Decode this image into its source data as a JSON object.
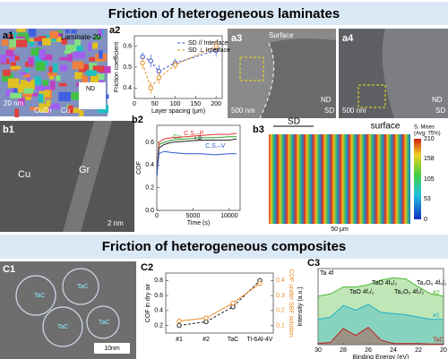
{
  "banners": [
    "Friction of heterogeneous laminates",
    "Friction of heterogeneous composites"
  ],
  "images": {
    "a1": {
      "label": "a1",
      "texts": [
        "Laminate-20",
        "ND",
        "CuZn",
        "Cu",
        "20 nm"
      ]
    },
    "a3": {
      "label": "a3",
      "texts": [
        "Surface",
        "500 nm",
        "ND",
        "SD"
      ]
    },
    "a4": {
      "label": "a4",
      "texts": [
        "500 nm",
        "ND",
        "SD"
      ]
    },
    "b1": {
      "label": "b1",
      "texts": [
        "Cu",
        "Gr",
        "2 nm"
      ]
    },
    "b3": {
      "label": "b3",
      "texts": [
        "SD",
        "surface",
        "50 μm"
      ],
      "legend_title": "S, Mises",
      "legend_subtitle": "(Avg: 75%)",
      "legend_ticks": [
        210,
        158,
        105,
        53,
        0
      ]
    },
    "c1": {
      "label": "C1",
      "texts": [
        "TaC",
        "TaC",
        "TaC",
        "TaC",
        "10nm"
      ]
    }
  },
  "chart_data": [
    {
      "label": "a2",
      "type": "line",
      "xlabel": "Layer spacing (μm)",
      "ylabel": "Friction coefficient",
      "x": [
        20,
        40,
        60,
        100,
        200
      ],
      "xlim": [
        0,
        215
      ],
      "xticks": [
        0,
        50,
        100,
        150,
        200
      ],
      "ylim": [
        0.35,
        0.65
      ],
      "yticks": [
        0.4,
        0.5,
        0.6
      ],
      "markers": true,
      "dashed": true,
      "legend": "upper right",
      "series": [
        {
          "name": "SD // Interface",
          "color": "#3a55c8",
          "values": [
            0.55,
            0.53,
            0.48,
            0.52,
            0.58
          ],
          "errors": [
            0.02,
            0.03,
            0.03,
            0.02,
            0.03
          ]
        },
        {
          "name": "SD ⊥ Interface",
          "color": "#e0902a",
          "values": [
            0.52,
            0.4,
            0.45,
            0.51,
            0.6
          ],
          "errors": [
            0.03,
            0.03,
            0.03,
            0.02,
            0.03
          ]
        }
      ]
    },
    {
      "label": "b2",
      "type": "line",
      "xlabel": "Time (s)",
      "ylabel": "COF",
      "x": [
        0,
        300,
        1000,
        2000,
        4000,
        6000,
        8000,
        10000,
        11000
      ],
      "xlim": [
        0,
        11500
      ],
      "xticks": [
        0,
        5000,
        10000
      ],
      "ylim": [
        0,
        0.75
      ],
      "yticks": [
        {
          "value": 0,
          "label": "0.0"
        },
        0.2,
        0.4,
        0.6
      ],
      "series_labels": true,
      "series": [
        {
          "name": "Cu",
          "color": "#2aa02a",
          "values": [
            0.3,
            0.58,
            0.6,
            0.62,
            0.63,
            0.64,
            0.64,
            0.65,
            0.65
          ]
        },
        {
          "name": "C.S.–P",
          "color": "#e03030",
          "values": [
            0.3,
            0.6,
            0.63,
            0.64,
            0.65,
            0.66,
            0.67,
            0.67,
            0.68
          ]
        },
        {
          "name": "I.P.",
          "color": "#222222",
          "values": [
            0.3,
            0.55,
            0.58,
            0.6,
            0.61,
            0.62,
            0.62,
            0.62,
            0.63
          ]
        },
        {
          "name": "C.S.–V",
          "color": "#2a5ad0",
          "values": [
            0.3,
            0.5,
            0.52,
            0.51,
            0.5,
            0.5,
            0.49,
            0.5,
            0.5
          ]
        }
      ]
    },
    {
      "label": "C2",
      "type": "line",
      "categories": [
        "#1",
        "#2",
        "TaC",
        "Ti-6Al-4V"
      ],
      "ylabel": "COF in dry air",
      "y2label": "COF under SBF solution",
      "ylim": [
        0.1,
        0.9
      ],
      "yticks": [
        0.2,
        0.4,
        0.6,
        0.8
      ],
      "y2lim": [
        0.05,
        0.45
      ],
      "y2ticks": [
        0.1,
        0.2,
        0.3,
        0.4
      ],
      "markers": true,
      "series": [
        {
          "name": "COF in dry air",
          "color": "#222222",
          "values": [
            0.2,
            0.25,
            0.45,
            0.8
          ],
          "dashed": true
        },
        {
          "name": "COF under SBF solution",
          "color": "#e88a2a",
          "values": [
            0.13,
            0.15,
            0.25,
            0.38
          ],
          "axis": "y2"
        }
      ]
    },
    {
      "label": "C3",
      "type": "line",
      "xlabel": "Binding Energy (eV)",
      "ylabel": "Intensity (a.u.)",
      "x": [
        30,
        29,
        28,
        27,
        26,
        25,
        24,
        23,
        22,
        21,
        20
      ],
      "xlim": [
        30,
        20
      ],
      "xticks": [
        30,
        28,
        26,
        24,
        22,
        20
      ],
      "ylim": [
        0,
        3.3
      ],
      "series_labels": true,
      "filled": true,
      "annotations": [
        "Ta 4f",
        "TaO 4f₇/₂",
        "TaO 4f₅/₂",
        "Ta₂O₅ 4f₇/₂",
        "Ta₂O₅ 4f₅/₂"
      ],
      "series": [
        {
          "name": "#2",
          "color": "#4ab830",
          "values": [
            2.1,
            2.2,
            2.5,
            2.5,
            2.6,
            2.8,
            2.9,
            2.85,
            2.5,
            2.2,
            2.1
          ]
        },
        {
          "name": "#1",
          "color": "#20b0c8",
          "values": [
            1.1,
            1.2,
            1.7,
            1.5,
            1.75,
            1.4,
            1.35,
            1.3,
            1.2,
            1.1,
            1.1
          ]
        },
        {
          "name": "TaC",
          "color": "#c02020",
          "values": [
            0.05,
            0.1,
            0.7,
            0.4,
            0.75,
            0.2,
            0.05,
            0.05,
            0.05,
            0.03,
            0.03
          ]
        }
      ]
    }
  ]
}
